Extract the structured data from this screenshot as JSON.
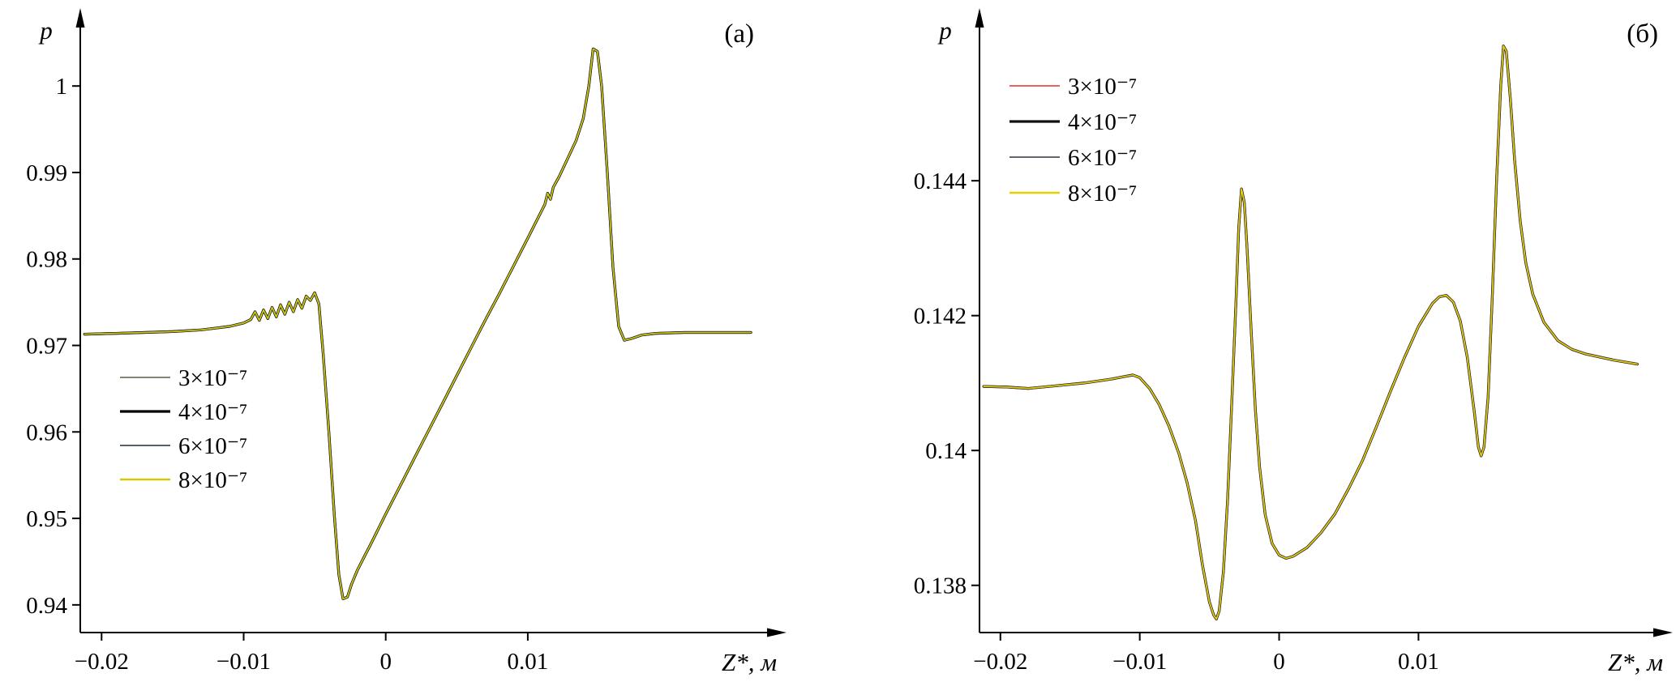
{
  "figure": {
    "background": "#ffffff"
  },
  "chart_data": [
    {
      "type": "line",
      "panel_tag": "(а)",
      "xlabel": "Z*, м",
      "ylabel": "p",
      "xlim": [
        -0.0215,
        0.0265
      ],
      "ylim": [
        0.9368,
        1.0062
      ],
      "grid": false,
      "legend_position": "inside-left-middle",
      "x_ticks": [
        {
          "v": -0.02,
          "label": "−0.02"
        },
        {
          "v": -0.01,
          "label": "−0.01"
        },
        {
          "v": 0,
          "label": "0"
        },
        {
          "v": 0.01,
          "label": "0.01"
        }
      ],
      "y_ticks": [
        {
          "v": 1.0,
          "label": "1"
        },
        {
          "v": 0.99,
          "label": "0.99"
        },
        {
          "v": 0.98,
          "label": "0.98"
        },
        {
          "v": 0.97,
          "label": "0.97"
        },
        {
          "v": 0.96,
          "label": "0.96"
        },
        {
          "v": 0.95,
          "label": "0.95"
        },
        {
          "v": 0.94,
          "label": "0.94"
        }
      ],
      "series": [
        {
          "label": "3×10⁻⁷",
          "color": "#5a5a48"
        },
        {
          "label": "4×10⁻⁷",
          "color": "#000000"
        },
        {
          "label": "6×10⁻⁷",
          "color": "#3d4a58"
        },
        {
          "label": "8×10⁻⁷",
          "color": "#d7c900"
        }
      ],
      "note": "all four series coincide on one curve",
      "x": [
        -0.0212,
        -0.019,
        -0.017,
        -0.015,
        -0.013,
        -0.012,
        -0.011,
        -0.01,
        -0.0095,
        -0.0092,
        -0.0089,
        -0.0086,
        -0.0083,
        -0.008,
        -0.0077,
        -0.0074,
        -0.0071,
        -0.0068,
        -0.0065,
        -0.0062,
        -0.0059,
        -0.0056,
        -0.0053,
        -0.005,
        -0.0047,
        -0.0044,
        -0.004,
        -0.0036,
        -0.0033,
        -0.003,
        -0.0027,
        -0.0024,
        -0.002,
        -0.0015,
        -0.001,
        0.0,
        0.001,
        0.002,
        0.003,
        0.004,
        0.005,
        0.006,
        0.007,
        0.008,
        0.009,
        0.01,
        0.0108,
        0.0112,
        0.0114,
        0.0116,
        0.0118,
        0.0122,
        0.0128,
        0.0134,
        0.0139,
        0.0143,
        0.0146,
        0.0149,
        0.0152,
        0.0156,
        0.016,
        0.0164,
        0.0168,
        0.0173,
        0.018,
        0.019,
        0.021,
        0.023,
        0.0257
      ],
      "y_shared": [
        0.9713,
        0.9714,
        0.9715,
        0.9716,
        0.9718,
        0.972,
        0.9722,
        0.9726,
        0.973,
        0.9739,
        0.9729,
        0.9741,
        0.9731,
        0.9744,
        0.9733,
        0.9747,
        0.9736,
        0.975,
        0.9739,
        0.9753,
        0.9743,
        0.9757,
        0.9752,
        0.9761,
        0.9748,
        0.969,
        0.96,
        0.95,
        0.9435,
        0.9407,
        0.9409,
        0.9424,
        0.944,
        0.9456,
        0.9472,
        0.9505,
        0.9537,
        0.9569,
        0.9601,
        0.9633,
        0.9665,
        0.9697,
        0.9729,
        0.976,
        0.9792,
        0.9824,
        0.985,
        0.9863,
        0.9876,
        0.9869,
        0.9883,
        0.9895,
        0.9916,
        0.9937,
        0.9962,
        1.0,
        1.0043,
        1.004,
        1.0,
        0.99,
        0.979,
        0.9722,
        0.9706,
        0.9708,
        0.9712,
        0.9714,
        0.9715,
        0.9715,
        0.9715
      ]
    },
    {
      "type": "line",
      "panel_tag": "(б)",
      "xlabel": "Z*, м",
      "ylabel": "p",
      "xlim": [
        -0.0215,
        0.0265
      ],
      "ylim": [
        0.1373,
        0.1462
      ],
      "grid": false,
      "legend_position": "inside-left-top",
      "x_ticks": [
        {
          "v": -0.02,
          "label": "−0.02"
        },
        {
          "v": -0.01,
          "label": "−0.01"
        },
        {
          "v": 0,
          "label": "0"
        },
        {
          "v": 0.01,
          "label": "0.01"
        }
      ],
      "y_ticks": [
        {
          "v": 0.144,
          "label": "0.144"
        },
        {
          "v": 0.142,
          "label": "0.142"
        },
        {
          "v": 0.14,
          "label": "0.14"
        },
        {
          "v": 0.138,
          "label": "0.138"
        }
      ],
      "series": [
        {
          "label": "3×10⁻⁷",
          "color": "#e0312e"
        },
        {
          "label": "4×10⁻⁷",
          "color": "#111111"
        },
        {
          "label": "6×10⁻⁷",
          "color": "#50505a"
        },
        {
          "label": "8×10⁻⁷",
          "color": "#e3d200"
        }
      ],
      "note": "all four series coincide on one curve",
      "x": [
        -0.0212,
        -0.0195,
        -0.018,
        -0.016,
        -0.014,
        -0.012,
        -0.011,
        -0.0105,
        -0.01,
        -0.0093,
        -0.0086,
        -0.0079,
        -0.0072,
        -0.0066,
        -0.006,
        -0.0055,
        -0.005,
        -0.0047,
        -0.0045,
        -0.0043,
        -0.004,
        -0.0037,
        -0.0034,
        -0.0031,
        -0.0029,
        -0.0027,
        -0.0025,
        -0.0023,
        -0.002,
        -0.0017,
        -0.0014,
        -0.001,
        -0.0005,
        0.0,
        0.0005,
        0.001,
        0.002,
        0.003,
        0.004,
        0.005,
        0.006,
        0.007,
        0.008,
        0.009,
        0.01,
        0.011,
        0.0115,
        0.012,
        0.0125,
        0.013,
        0.0135,
        0.014,
        0.0143,
        0.0145,
        0.0147,
        0.015,
        0.0153,
        0.0156,
        0.0159,
        0.0161,
        0.0163,
        0.0166,
        0.0169,
        0.0173,
        0.0177,
        0.0182,
        0.019,
        0.02,
        0.021,
        0.022,
        0.024,
        0.0257
      ],
      "y_shared": [
        0.14095,
        0.14094,
        0.14092,
        0.14096,
        0.141,
        0.14106,
        0.1411,
        0.14112,
        0.14108,
        0.14092,
        0.14068,
        0.14036,
        0.13996,
        0.13952,
        0.13896,
        0.1383,
        0.13775,
        0.13756,
        0.1375,
        0.13762,
        0.1382,
        0.13925,
        0.1407,
        0.1422,
        0.1433,
        0.14388,
        0.14368,
        0.143,
        0.14175,
        0.1406,
        0.13975,
        0.13905,
        0.13862,
        0.13845,
        0.1384,
        0.13843,
        0.13856,
        0.13878,
        0.13906,
        0.13944,
        0.13986,
        0.14036,
        0.14088,
        0.14138,
        0.14184,
        0.14218,
        0.14228,
        0.1423,
        0.1422,
        0.14192,
        0.14138,
        0.14058,
        0.14005,
        0.13992,
        0.14005,
        0.1408,
        0.1423,
        0.144,
        0.1454,
        0.146,
        0.14592,
        0.1452,
        0.1443,
        0.1434,
        0.14278,
        0.14232,
        0.1419,
        0.14163,
        0.1415,
        0.14143,
        0.14134,
        0.14128
      ]
    }
  ]
}
